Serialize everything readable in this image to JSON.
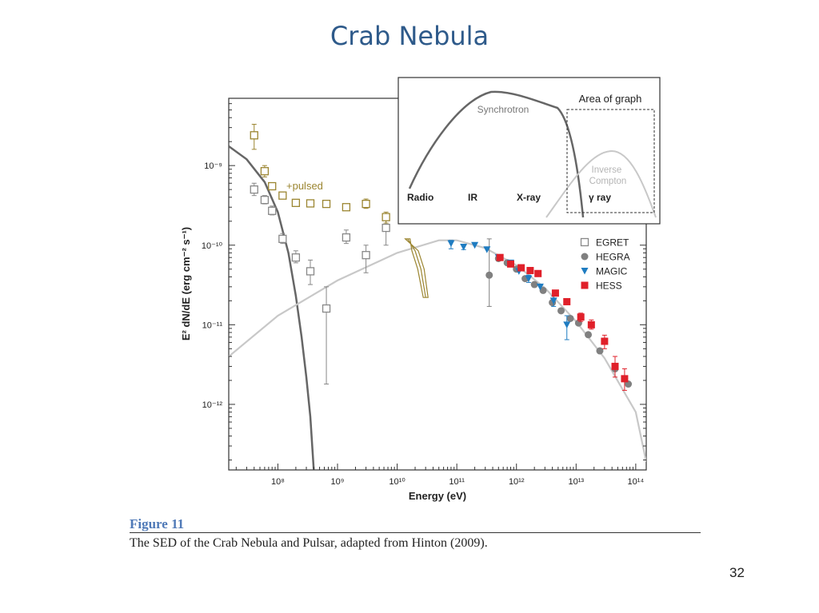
{
  "slide": {
    "title": "Crab Nebula",
    "page_number": "32"
  },
  "figure": {
    "label": "Figure 11",
    "caption": "The SED of the Crab Nebula and Pulsar, adapted from Hinton (2009)."
  },
  "chart_data": [
    {
      "type": "scatter",
      "title": "",
      "xlabel": "Energy (eV)",
      "ylabel": "E² dN/dE (erg cm⁻² s⁻¹)",
      "x_scale": "log",
      "y_scale": "log",
      "xlim": [
        15000000,
        150000000000000.0
      ],
      "ylim": [
        1.5e-13,
        7e-09
      ],
      "x_ticks": [
        {
          "value": 100000000.0,
          "label": "10⁸"
        },
        {
          "value": 1000000000.0,
          "label": "10⁹"
        },
        {
          "value": 10000000000.0,
          "label": "10¹⁰"
        },
        {
          "value": 100000000000.0,
          "label": "10¹¹"
        },
        {
          "value": 1000000000000.0,
          "label": "10¹²"
        },
        {
          "value": 10000000000000.0,
          "label": "10¹³"
        },
        {
          "value": 100000000000000.0,
          "label": "10¹⁴"
        }
      ],
      "y_ticks": [
        {
          "value": 1e-12,
          "label": "10⁻¹²"
        },
        {
          "value": 1e-11,
          "label": "10⁻¹¹"
        },
        {
          "value": 1e-10,
          "label": "10⁻¹⁰"
        },
        {
          "value": 1e-09,
          "label": "10⁻⁹"
        }
      ],
      "grid": false,
      "legend_position": "right",
      "annotation": "+pulsed",
      "series": [
        {
          "name": "EGRET",
          "marker": "open-square",
          "color": "#888888",
          "points": [
            {
              "x": 40000000,
              "y": 5e-10,
              "ylo": 4.2e-10,
              "yhi": 6e-10
            },
            {
              "x": 60000000,
              "y": 3.7e-10,
              "ylo": 3.3e-10,
              "yhi": 4.2e-10
            },
            {
              "x": 80000000,
              "y": 2.7e-10,
              "ylo": 2.4e-10,
              "yhi": 3.1e-10
            },
            {
              "x": 120000000,
              "y": 1.2e-10,
              "ylo": 1.05e-10,
              "yhi": 1.4e-10
            },
            {
              "x": 200000000,
              "y": 7e-11,
              "ylo": 6e-11,
              "yhi": 8.5e-11
            },
            {
              "x": 350000000,
              "y": 4.7e-11,
              "ylo": 3.2e-11,
              "yhi": 6.5e-11
            },
            {
              "x": 650000000,
              "y": 1.6e-11,
              "ylo": 1.8e-12,
              "yhi": 3e-11
            },
            {
              "x": 1400000000,
              "y": 1.25e-10,
              "ylo": 1.05e-10,
              "yhi": 1.55e-10
            },
            {
              "x": 3000000000,
              "y": 7.5e-11,
              "ylo": 4.5e-11,
              "yhi": 1e-10
            },
            {
              "x": 6500000000,
              "y": 1.65e-10,
              "ylo": 1e-10,
              "yhi": 2.1e-10
            }
          ]
        },
        {
          "name": "",
          "marker": "open-square",
          "color": "#9b8530",
          "points": [
            {
              "x": 40000000,
              "y": 2.4e-09,
              "ylo": 1.6e-09,
              "yhi": 3.3e-09
            },
            {
              "x": 60000000,
              "y": 8.5e-10,
              "ylo": 7.2e-10,
              "yhi": 1e-09
            },
            {
              "x": 80000000,
              "y": 5.5e-10
            },
            {
              "x": 120000000,
              "y": 4.2e-10
            },
            {
              "x": 200000000,
              "y": 3.4e-10
            },
            {
              "x": 350000000,
              "y": 3.35e-10
            },
            {
              "x": 650000000,
              "y": 3.3e-10
            },
            {
              "x": 1400000000,
              "y": 3e-10,
              "ylo": 2.8e-10,
              "yhi": 3.3e-10
            },
            {
              "x": 3000000000,
              "y": 3.3e-10,
              "ylo": 2.9e-10,
              "yhi": 3.8e-10
            },
            {
              "x": 6500000000,
              "y": 2.25e-10,
              "ylo": 1.9e-10,
              "yhi": 2.6e-10
            }
          ]
        },
        {
          "name": "HEGRA",
          "marker": "circle",
          "color": "#808080",
          "points": [
            {
              "x": 350000000000,
              "y": 4.2e-11,
              "ylo": 1.7e-11,
              "yhi": 1.2e-10
            },
            {
              "x": 500000000000,
              "y": 6.8e-11
            },
            {
              "x": 700000000000,
              "y": 6e-11
            },
            {
              "x": 1000000000000,
              "y": 5e-11
            },
            {
              "x": 1400000000000,
              "y": 3.8e-11
            },
            {
              "x": 2000000000000,
              "y": 3.2e-11
            },
            {
              "x": 2800000000000,
              "y": 2.7e-11
            },
            {
              "x": 4000000000000,
              "y": 1.9e-11
            },
            {
              "x": 5600000000000,
              "y": 1.5e-11
            },
            {
              "x": 8000000000000,
              "y": 1.2e-11
            },
            {
              "x": 11000000000000,
              "y": 1.05e-11
            },
            {
              "x": 16000000000000,
              "y": 7.5e-12
            },
            {
              "x": 25000000000000,
              "y": 4.7e-12
            },
            {
              "x": 45000000000000,
              "y": 2.8e-12
            },
            {
              "x": 75000000000000,
              "y": 1.8e-12
            }
          ]
        },
        {
          "name": "MAGIC",
          "marker": "triangle-down",
          "color": "#1f7cc1",
          "points": [
            {
              "x": 80000000000,
              "y": 1.05e-10,
              "ylo": 9e-11,
              "yhi": 1.15e-10
            },
            {
              "x": 130000000000,
              "y": 9.5e-11,
              "ylo": 8.8e-11,
              "yhi": 1e-10
            },
            {
              "x": 200000000000,
              "y": 1e-10
            },
            {
              "x": 320000000000,
              "y": 8.8e-11
            },
            {
              "x": 500000000000,
              "y": 7e-11
            },
            {
              "x": 800000000000,
              "y": 6e-11
            },
            {
              "x": 1100000000000,
              "y": 4.7e-11
            },
            {
              "x": 1600000000000,
              "y": 3.8e-11,
              "ylo": 3.4e-11,
              "yhi": 4.2e-11
            },
            {
              "x": 2500000000000,
              "y": 3e-11
            },
            {
              "x": 4200000000000,
              "y": 2e-11,
              "ylo": 1.7e-11,
              "yhi": 2.3e-11
            },
            {
              "x": 7000000000000,
              "y": 1e-11,
              "ylo": 6.5e-12,
              "yhi": 1.3e-11
            }
          ]
        },
        {
          "name": "HESS",
          "marker": "filled-square",
          "color": "#e0202a",
          "points": [
            {
              "x": 530000000000,
              "y": 7e-11
            },
            {
              "x": 800000000000,
              "y": 5.8e-11
            },
            {
              "x": 1200000000000,
              "y": 5.2e-11
            },
            {
              "x": 1700000000000,
              "y": 4.8e-11
            },
            {
              "x": 2300000000000,
              "y": 4.4e-11
            },
            {
              "x": 4500000000000,
              "y": 2.5e-11
            },
            {
              "x": 7000000000000,
              "y": 1.95e-11
            },
            {
              "x": 12000000000000,
              "y": 1.25e-11,
              "ylo": 1.1e-11,
              "yhi": 1.4e-11
            },
            {
              "x": 18000000000000,
              "y": 1e-11,
              "ylo": 8.8e-12,
              "yhi": 1.15e-11
            },
            {
              "x": 30000000000000,
              "y": 6.2e-12,
              "ylo": 5e-12,
              "yhi": 7.4e-12
            },
            {
              "x": 45000000000000,
              "y": 3e-12,
              "ylo": 2.2e-12,
              "yhi": 4e-12
            },
            {
              "x": 65000000000000,
              "y": 2.1e-12,
              "ylo": 1.5e-12,
              "yhi": 2.8e-12
            }
          ]
        }
      ],
      "curves": [
        {
          "label": "",
          "color": "#666666",
          "points": [
            [
              15000000,
              1.75e-09
            ],
            [
              30000000,
              1.2e-09
            ],
            [
              60000000,
              6.2e-10
            ],
            [
              100000000,
              2.6e-10
            ],
            [
              150000000,
              8e-11
            ],
            [
              200000000,
              2.3e-11
            ],
            [
              250000000,
              7e-12
            ],
            [
              300000000,
              2.2e-12
            ],
            [
              350000000,
              7e-13
            ],
            [
              400000000,
              1.5e-13
            ]
          ]
        },
        {
          "label": "",
          "color": "#c8c8c8",
          "points": [
            [
              15000000,
              4e-12
            ],
            [
              100000000,
              1.3e-11
            ],
            [
              1000000000,
              3.6e-11
            ],
            [
              10000000000,
              8e-11
            ],
            [
              50000000000,
              1.15e-10
            ],
            [
              100000000000,
              1.15e-10
            ],
            [
              300000000000,
              9.2e-11
            ],
            [
              1000000000000,
              5.6e-11
            ],
            [
              3000000000000,
              2.9e-11
            ],
            [
              10000000000000,
              1.1e-11
            ],
            [
              30000000000000,
              3.8e-12
            ],
            [
              100000000000000,
              8e-13
            ],
            [
              150000000000000,
              1.9e-13
            ]
          ]
        }
      ],
      "bow_tie": {
        "color": "#9b8530",
        "points": [
          [
            15000000000,
            1.2e-10
          ],
          [
            20000000000,
            8.5e-11
          ],
          [
            25000000000,
            5e-11
          ],
          [
            30000000000,
            2.2e-11
          ]
        ]
      }
    },
    {
      "type": "line",
      "title": "Area of graph",
      "x_categories": [
        "Radio",
        "IR",
        "X-ray",
        "γ ray"
      ],
      "curves": [
        {
          "label": "Synchrotron",
          "color": "#666666"
        },
        {
          "label": "Inverse Compton",
          "color": "#c8c8c8"
        }
      ]
    }
  ]
}
